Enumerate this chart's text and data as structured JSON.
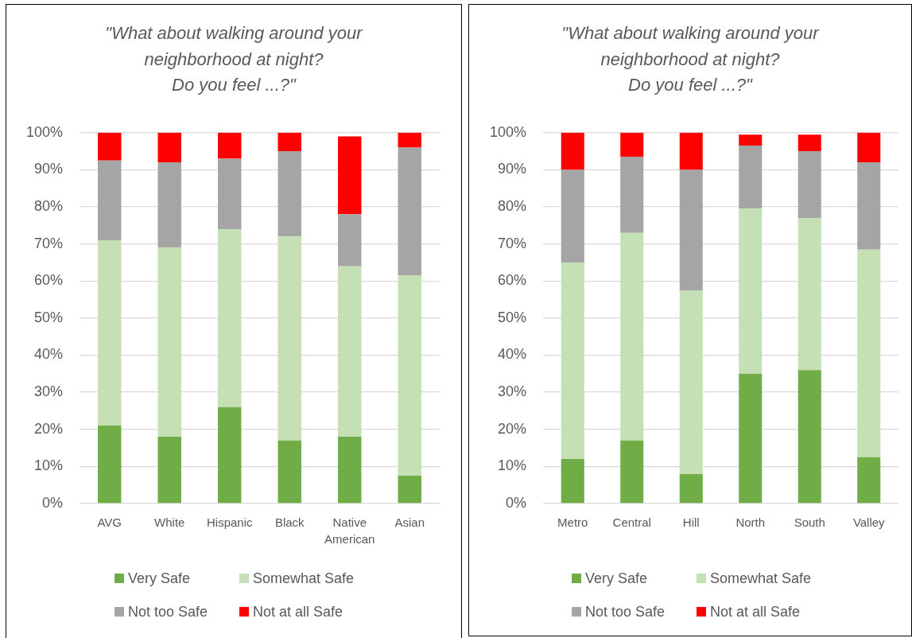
{
  "chart_data": [
    {
      "type": "bar",
      "stacked": true,
      "title": "\"What about walking around your neighborhood at night?\nDo you feel ...?\"",
      "categories": [
        "AVG",
        "White",
        "Hispanic",
        "Black",
        "Native American",
        "Asian"
      ],
      "series": [
        {
          "name": "Very Safe",
          "color": "#70ad47",
          "values": [
            21,
            18,
            26,
            17,
            18,
            7.5
          ]
        },
        {
          "name": "Somewhat Safe",
          "color": "#c5e0b4",
          "values": [
            50,
            51,
            48,
            55,
            46,
            54
          ]
        },
        {
          "name": "Not too Safe",
          "color": "#a5a5a5",
          "values": [
            21.5,
            23,
            19,
            23,
            14,
            34.5
          ]
        },
        {
          "name": "Not at all Safe",
          "color": "#ff0000",
          "values": [
            7.5,
            8,
            7,
            5,
            21,
            4
          ]
        }
      ],
      "ylim": [
        0,
        100
      ],
      "yticks": [
        {
          "value": 0,
          "label": "0%"
        },
        {
          "value": 10,
          "label": "10%"
        },
        {
          "value": 20,
          "label": "20%"
        },
        {
          "value": 30,
          "label": "30%"
        },
        {
          "value": 40,
          "label": "40%"
        },
        {
          "value": 50,
          "label": "50%"
        },
        {
          "value": 60,
          "label": "60%"
        },
        {
          "value": 70,
          "label": "70%"
        },
        {
          "value": 80,
          "label": "80%"
        },
        {
          "value": 90,
          "label": "90%"
        },
        {
          "value": 100,
          "label": "100%"
        }
      ],
      "grid": "y",
      "legend": "bottom"
    },
    {
      "type": "bar",
      "stacked": true,
      "title": "\"What about walking around your neighborhood at night?\nDo you feel ...?\"",
      "categories": [
        "Metro",
        "Central",
        "Hill",
        "North",
        "South",
        "Valley"
      ],
      "series": [
        {
          "name": "Very Safe",
          "color": "#70ad47",
          "values": [
            12,
            17,
            8,
            35,
            36,
            12.5
          ]
        },
        {
          "name": "Somewhat Safe",
          "color": "#c5e0b4",
          "values": [
            53,
            56,
            49.5,
            44.5,
            41,
            56
          ]
        },
        {
          "name": "Not too Safe",
          "color": "#a5a5a5",
          "values": [
            25,
            20.5,
            32.5,
            17,
            18,
            23.5
          ]
        },
        {
          "name": "Not at all Safe",
          "color": "#ff0000",
          "values": [
            10,
            6.5,
            10,
            3,
            4.5,
            8
          ]
        }
      ],
      "ylim": [
        0,
        100
      ],
      "yticks": [
        {
          "value": 0,
          "label": "0%"
        },
        {
          "value": 10,
          "label": "10%"
        },
        {
          "value": 20,
          "label": "20%"
        },
        {
          "value": 30,
          "label": "30%"
        },
        {
          "value": 40,
          "label": "40%"
        },
        {
          "value": 50,
          "label": "50%"
        },
        {
          "value": 60,
          "label": "60%"
        },
        {
          "value": 70,
          "label": "70%"
        },
        {
          "value": 80,
          "label": "80%"
        },
        {
          "value": 90,
          "label": "90%"
        },
        {
          "value": 100,
          "label": "100%"
        }
      ],
      "grid": "y",
      "legend": "bottom"
    }
  ]
}
